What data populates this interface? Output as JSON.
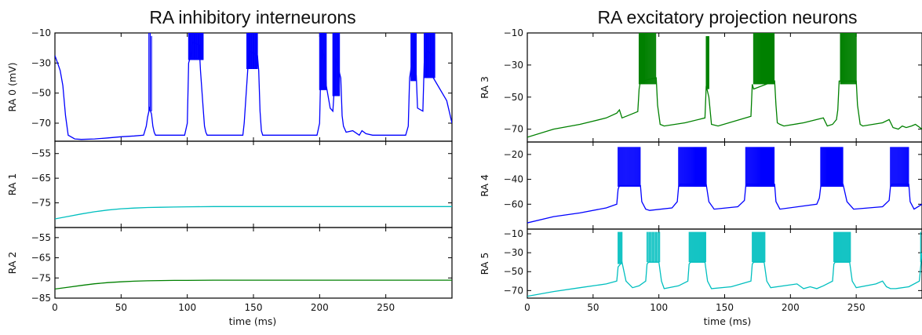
{
  "chart_data": [
    {
      "type": "line",
      "title": "RA inhibitory interneurons",
      "xlabel": "time (ms)",
      "xlim": [
        0,
        300
      ],
      "xticks": [
        0,
        50,
        100,
        150,
        200,
        250
      ],
      "panels": [
        {
          "ylabel": "RA 0 (mV)",
          "ylim": [
            -82,
            -10
          ],
          "yticks": [
            -10,
            -30,
            -50,
            -70
          ],
          "color": "#0000ff",
          "series": [
            {
              "x": [
                0,
                2,
                4,
                6,
                8,
                10,
                15,
                20,
                30,
                40,
                50,
                60,
                67,
                69,
                70,
                71,
                71.5,
                73,
                74,
                75,
                76,
                77,
                78,
                98,
                100,
                101,
                103,
                104,
                109,
                110,
                112,
                113,
                114,
                115,
                116,
                118,
                142,
                143,
                146,
                147,
                153,
                154,
                155,
                156,
                157,
                158,
                160,
                198,
                200,
                201,
                202,
                204,
                205,
                208,
                210,
                211,
                212,
                216,
                217,
                218,
                220,
                225,
                230,
                232,
                235,
                240,
                255,
                265,
                267,
                268,
                270,
                273,
                274,
                278,
                279,
                281,
                285,
                286,
                296,
                300
              ],
              "y": [
                -25,
                -30,
                -35,
                -45,
                -65,
                -78,
                -80.5,
                -80.8,
                -80.5,
                -79.8,
                -79,
                -78.5,
                -78,
                -72,
                -66,
                -62,
                -60,
                -64,
                -72,
                -76,
                -78,
                -78,
                -78,
                -78,
                -70,
                -30,
                -24,
                -16,
                -18,
                -35,
                -60,
                -72,
                -76,
                -78,
                -78,
                -78,
                -78,
                -70,
                -30,
                -22,
                -25,
                -35,
                -62,
                -75,
                -78,
                -78,
                -78,
                -78,
                -70,
                -30,
                -22,
                -26,
                -45,
                -60,
                -62,
                -48,
                -26,
                -40,
                -65,
                -72,
                -76,
                -75,
                -78,
                -75,
                -77,
                -78,
                -78,
                -78,
                -72,
                -40,
                -28,
                -38,
                -60,
                -62,
                -30,
                -22,
                -24,
                -40,
                -55,
                -70
              ]
            }
          ],
          "spikes": [
            {
              "x": 71,
              "top": -10,
              "bottom": -62
            },
            {
              "x": 72,
              "top": -10,
              "bottom": -62
            },
            {
              "x": 73,
              "top": -12,
              "bottom": -62
            },
            {
              "from": 101,
              "to": 112,
              "top": -10,
              "bottom": -28,
              "step": 0.5
            },
            {
              "from": 145,
              "to": 153,
              "top": -10,
              "bottom": -34,
              "step": 0.5
            },
            {
              "from": 200,
              "to": 205,
              "top": -10,
              "bottom": -48,
              "step": 0.5
            },
            {
              "from": 210,
              "to": 215,
              "top": -10,
              "bottom": -52,
              "step": 0.5
            },
            {
              "from": 269,
              "to": 273,
              "top": -10,
              "bottom": -42,
              "step": 0.5
            },
            {
              "from": 279,
              "to": 287,
              "top": -10,
              "bottom": -40,
              "step": 0.5
            }
          ]
        },
        {
          "ylabel": "RA 1",
          "ylim": [
            -85,
            -50
          ],
          "yticks": [
            -55,
            -65,
            -75
          ],
          "color": "#00bfbf",
          "series": [
            {
              "x": [
                0,
                10,
                20,
                30,
                40,
                50,
                60,
                70,
                80,
                90,
                100,
                120,
                140,
                160,
                200,
                250,
                300
              ],
              "y": [
                -81.5,
                -80.5,
                -79.5,
                -78.6,
                -77.9,
                -77.4,
                -77.1,
                -76.9,
                -76.8,
                -76.7,
                -76.6,
                -76.5,
                -76.5,
                -76.5,
                -76.5,
                -76.5,
                -76.5
              ]
            }
          ],
          "spikes": []
        },
        {
          "ylabel": "RA 2",
          "ylim": [
            -85,
            -50
          ],
          "yticks": [
            -55,
            -65,
            -75,
            -85
          ],
          "color": "#008000",
          "series": [
            {
              "x": [
                0,
                10,
                20,
                30,
                40,
                50,
                60,
                70,
                80,
                90,
                100,
                120,
                140,
                160,
                200,
                250,
                300
              ],
              "y": [
                -80.5,
                -79.6,
                -78.7,
                -77.9,
                -77.3,
                -76.9,
                -76.6,
                -76.4,
                -76.3,
                -76.2,
                -76.2,
                -76.1,
                -76.1,
                -76.1,
                -76.1,
                -76.1,
                -76.1
              ]
            }
          ],
          "spikes": []
        }
      ]
    },
    {
      "type": "line",
      "title": "RA excitatory projection neurons",
      "xlabel": "time (ms)",
      "xlim": [
        0,
        300
      ],
      "xticks": [
        0,
        50,
        100,
        150,
        200,
        250
      ],
      "panels": [
        {
          "ylabel": "RA 3",
          "ylim": [
            -78,
            -10
          ],
          "yticks": [
            -10,
            -30,
            -50,
            -70
          ],
          "color": "#008000",
          "series": [
            {
              "x": [
                0,
                20,
                40,
                60,
                68,
                70,
                72,
                75,
                84,
                85,
                86,
                98,
                99,
                101,
                104,
                120,
                135,
                136,
                138,
                140,
                145,
                170,
                171,
                172,
                188,
                189,
                190,
                192,
                195,
                210,
                225,
                228,
                232,
                235,
                236,
                237,
                250,
                251,
                253,
                255,
                270,
                275,
                278,
                282,
                285,
                288,
                292,
                295,
                300
              ],
              "y": [
                -75,
                -70,
                -67,
                -63,
                -60,
                -58,
                -63,
                -62,
                -59,
                -45,
                -40,
                -38,
                -55,
                -67,
                -68,
                -66,
                -63,
                -43,
                -50,
                -67,
                -68,
                -62,
                -42,
                -45,
                -40,
                -55,
                -66,
                -67,
                -68,
                -66,
                -63,
                -68,
                -67,
                -64,
                -58,
                -40,
                -40,
                -55,
                -67,
                -68,
                -66,
                -64,
                -69,
                -70,
                -68,
                -69,
                -68,
                -67,
                -70
              ]
            }
          ],
          "spikes": [
            {
              "from": 85,
              "to": 98,
              "top": -10,
              "bottom": -42,
              "step": 0.6
            },
            {
              "from": 136,
              "to": 138,
              "top": -12,
              "bottom": -45,
              "step": 0.5
            },
            {
              "from": 172,
              "to": 188,
              "top": -10,
              "bottom": -42,
              "step": 0.6
            },
            {
              "from": 238,
              "to": 250,
              "top": -10,
              "bottom": -42,
              "step": 0.6
            }
          ]
        },
        {
          "ylabel": "RA 4",
          "ylim": [
            -80,
            -10
          ],
          "yticks": [
            -20,
            -40,
            -60
          ],
          "color": "#0000ff",
          "series": [
            {
              "x": [
                0,
                20,
                40,
                60,
                68,
                69,
                70,
                86,
                87,
                90,
                93,
                110,
                114,
                115,
                116,
                136,
                138,
                142,
                160,
                165,
                166,
                167,
                188,
                189,
                192,
                220,
                222,
                223,
                224,
                240,
                243,
                248,
                270,
                275,
                276,
                277,
                290,
                291,
                294,
                300
              ],
              "y": [
                -75,
                -70,
                -67,
                -63,
                -60,
                -48,
                -45,
                -45,
                -58,
                -64,
                -65,
                -63,
                -58,
                -46,
                -44,
                -44,
                -58,
                -64,
                -62,
                -57,
                -46,
                -44,
                -44,
                -58,
                -64,
                -60,
                -55,
                -46,
                -44,
                -44,
                -58,
                -64,
                -62,
                -57,
                -46,
                -44,
                -44,
                -58,
                -64,
                -60
              ]
            }
          ],
          "spikes": [
            {
              "from": 69,
              "to": 86,
              "top": -14,
              "bottom": -46,
              "step": 0.6
            },
            {
              "from": 115,
              "to": 136,
              "top": -14,
              "bottom": -46,
              "step": 0.6
            },
            {
              "from": 166,
              "to": 188,
              "top": -14,
              "bottom": -46,
              "step": 0.6
            },
            {
              "from": 223,
              "to": 240,
              "top": -14,
              "bottom": -46,
              "step": 0.6
            },
            {
              "from": 276,
              "to": 290,
              "top": -14,
              "bottom": -46,
              "step": 0.6
            }
          ]
        },
        {
          "ylabel": "RA 5",
          "ylim": [
            -78,
            -5
          ],
          "yticks": [
            -10,
            -30,
            -50,
            -70
          ],
          "color": "#00bfbf",
          "series": [
            {
              "x": [
                0,
                20,
                40,
                60,
                68,
                69,
                72,
                75,
                80,
                85,
                90,
                91,
                92,
                100,
                102,
                104,
                115,
                122,
                123,
                124,
                135,
                137,
                140,
                155,
                170,
                171,
                172,
                180,
                182,
                185,
                205,
                210,
                215,
                220,
                225,
                232,
                233,
                234,
                245,
                247,
                250,
                265,
                270,
                273,
                276,
                280,
                290,
                298,
                299,
                300
              ],
              "y": [
                -76,
                -71,
                -67,
                -63,
                -60,
                -45,
                -40,
                -60,
                -67,
                -65,
                -60,
                -42,
                -40,
                -40,
                -60,
                -68,
                -65,
                -60,
                -42,
                -40,
                -40,
                -60,
                -68,
                -66,
                -60,
                -42,
                -40,
                -40,
                -60,
                -67,
                -63,
                -68,
                -66,
                -68,
                -65,
                -60,
                -42,
                -40,
                -40,
                -60,
                -67,
                -63,
                -60,
                -66,
                -68,
                -68,
                -66,
                -60,
                -45,
                -30
              ]
            }
          ],
          "spikes": [
            {
              "from": 69,
              "to": 72,
              "top": -8,
              "bottom": -42,
              "step": 0.6
            },
            {
              "from": 91,
              "to": 101,
              "top": -8,
              "bottom": -40,
              "step": 0.8
            },
            {
              "from": 123,
              "to": 136,
              "top": -8,
              "bottom": -40,
              "step": 0.6
            },
            {
              "from": 171,
              "to": 181,
              "top": -8,
              "bottom": -40,
              "step": 0.6
            },
            {
              "from": 233,
              "to": 246,
              "top": -8,
              "bottom": -40,
              "step": 0.6
            },
            {
              "x": 299,
              "top": -8,
              "bottom": -40
            }
          ]
        }
      ]
    }
  ]
}
